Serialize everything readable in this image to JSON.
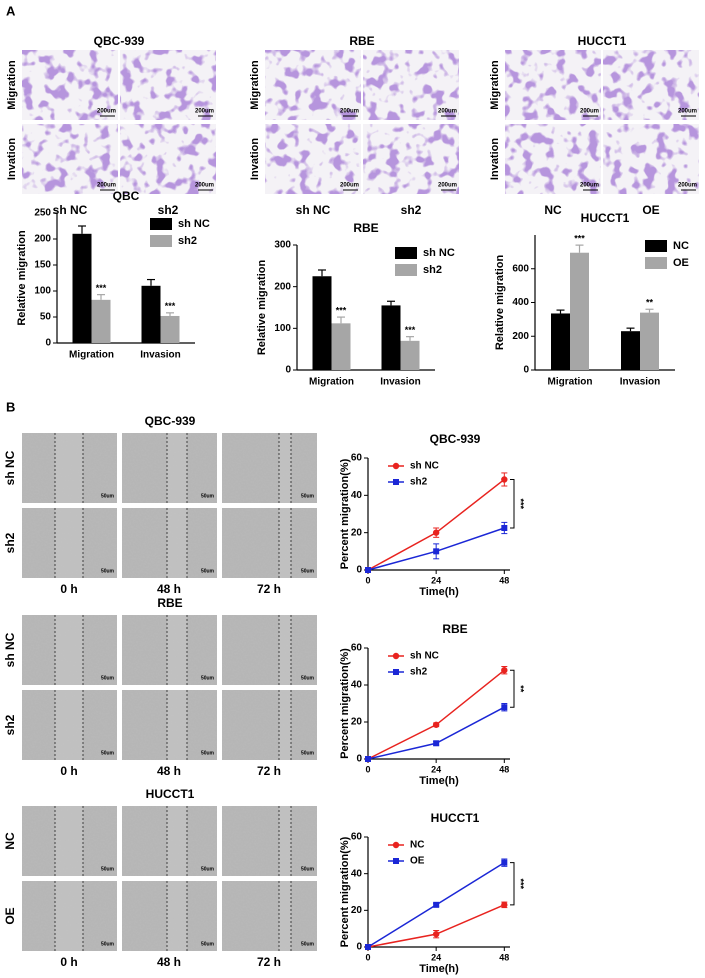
{
  "panel_labels": [
    "A",
    "B"
  ],
  "image_grids": [
    {
      "title": "QBC-939",
      "rows": [
        "Migration",
        "Invation"
      ],
      "columns": [
        "sh NC",
        "sh2"
      ],
      "scale_label": "200um"
    },
    {
      "title": "RBE",
      "rows": [
        "Migration",
        "Invation"
      ],
      "columns": [
        "sh NC",
        "sh2"
      ],
      "scale_label": "200um"
    },
    {
      "title": "HUCCT1",
      "rows": [
        "Migration",
        "Invation"
      ],
      "columns": [
        "NC",
        "OE"
      ],
      "scale_label": "200um"
    }
  ],
  "scratch_grids": [
    {
      "title": "QBC-939",
      "rows": [
        "sh NC",
        "sh2"
      ],
      "columns": [
        "0 h",
        "48 h",
        "72 h"
      ],
      "scale_label": "50um"
    },
    {
      "title": "RBE",
      "rows": [
        "sh NC",
        "sh2"
      ],
      "columns": [
        "0 h",
        "48 h",
        "72 h"
      ],
      "scale_label": "50um"
    },
    {
      "title": "HUCCT1",
      "rows": [
        "NC",
        "OE"
      ],
      "columns": [
        "0 h",
        "48 h",
        "72 h"
      ],
      "scale_label": "50um"
    }
  ],
  "chart_data": [
    {
      "type": "bar",
      "title": "QBC",
      "y_label": "Relative migration",
      "categories": [
        "Migration",
        "Invasion"
      ],
      "series": [
        {
          "name": "sh NC",
          "color": "#000000",
          "values": [
            210,
            110
          ],
          "errors": [
            15,
            12
          ]
        },
        {
          "name": "sh2",
          "color": "#a6a6a6",
          "values": [
            83,
            52
          ],
          "errors": [
            10,
            6
          ],
          "annotations": [
            "***",
            "***"
          ]
        }
      ],
      "ylim": [
        0,
        250
      ],
      "yticks": [
        0,
        50,
        100,
        150,
        200,
        250
      ]
    },
    {
      "type": "bar",
      "title": "RBE",
      "y_label": "Relative migration",
      "categories": [
        "Migration",
        "Invasion"
      ],
      "series": [
        {
          "name": "sh NC",
          "color": "#000000",
          "values": [
            225,
            155
          ],
          "errors": [
            15,
            10
          ]
        },
        {
          "name": "sh2",
          "color": "#a6a6a6",
          "values": [
            112,
            70
          ],
          "errors": [
            15,
            10
          ],
          "annotations": [
            "***",
            "***"
          ]
        }
      ],
      "ylim": [
        0,
        300
      ],
      "yticks": [
        0,
        100,
        200,
        300
      ]
    },
    {
      "type": "bar",
      "title": "HUCCT1",
      "y_label": "Relative migration",
      "categories": [
        "Migration",
        "Invasion"
      ],
      "series": [
        {
          "name": "NC",
          "color": "#000000",
          "values": [
            335,
            230
          ],
          "errors": [
            20,
            18
          ]
        },
        {
          "name": "OE",
          "color": "#a6a6a6",
          "values": [
            695,
            340
          ],
          "errors": [
            45,
            20
          ],
          "annotations": [
            "***",
            "**"
          ]
        }
      ],
      "ylim": [
        0,
        800
      ],
      "yticks": [
        0,
        200,
        400,
        600
      ]
    },
    {
      "type": "line",
      "title": "QBC-939",
      "x_label": "Time(h)",
      "y_label": "Percent migration(%)",
      "x": [
        0,
        24,
        48
      ],
      "series": [
        {
          "name": "sh NC",
          "color": "#e8231f",
          "marker": "circle",
          "values": [
            0,
            20,
            48.5
          ],
          "errors": [
            0,
            2.5,
            3.5
          ]
        },
        {
          "name": "sh2",
          "color": "#1b27d6",
          "marker": "square",
          "values": [
            0,
            10,
            22.5
          ],
          "errors": [
            0,
            4,
            3
          ]
        }
      ],
      "xlim": [
        0,
        50
      ],
      "ylim": [
        0,
        60
      ],
      "xticks": [
        0,
        24,
        48
      ],
      "yticks": [
        0,
        20,
        40,
        60
      ],
      "annotation": "***"
    },
    {
      "type": "line",
      "title": "RBE",
      "x_label": "Time(h)",
      "y_label": "Percent migration(%)",
      "x": [
        0,
        24,
        48
      ],
      "series": [
        {
          "name": "sh NC",
          "color": "#e8231f",
          "marker": "circle",
          "values": [
            0,
            18.5,
            48
          ],
          "errors": [
            0,
            1,
            2
          ]
        },
        {
          "name": "sh2",
          "color": "#1b27d6",
          "marker": "square",
          "values": [
            0,
            8.5,
            28
          ],
          "errors": [
            0,
            1,
            2
          ]
        }
      ],
      "xlim": [
        0,
        50
      ],
      "ylim": [
        0,
        60
      ],
      "xticks": [
        0,
        24,
        48
      ],
      "yticks": [
        0,
        20,
        40,
        60
      ],
      "annotation": "**"
    },
    {
      "type": "line",
      "title": "HUCCT1",
      "x_label": "Time(h)",
      "y_label": "Percent migration(%)",
      "x": [
        0,
        24,
        48
      ],
      "series": [
        {
          "name": "NC",
          "color": "#e8231f",
          "marker": "circle",
          "values": [
            0,
            7,
            23
          ],
          "errors": [
            0,
            2,
            1.5
          ]
        },
        {
          "name": "OE",
          "color": "#1b27d6",
          "marker": "square",
          "values": [
            0,
            23,
            46
          ],
          "errors": [
            0,
            0.8,
            2
          ]
        }
      ],
      "xlim": [
        0,
        50
      ],
      "ylim": [
        0,
        60
      ],
      "xticks": [
        0,
        24,
        48
      ],
      "yticks": [
        0,
        20,
        40,
        60
      ],
      "annotation": "***"
    }
  ]
}
